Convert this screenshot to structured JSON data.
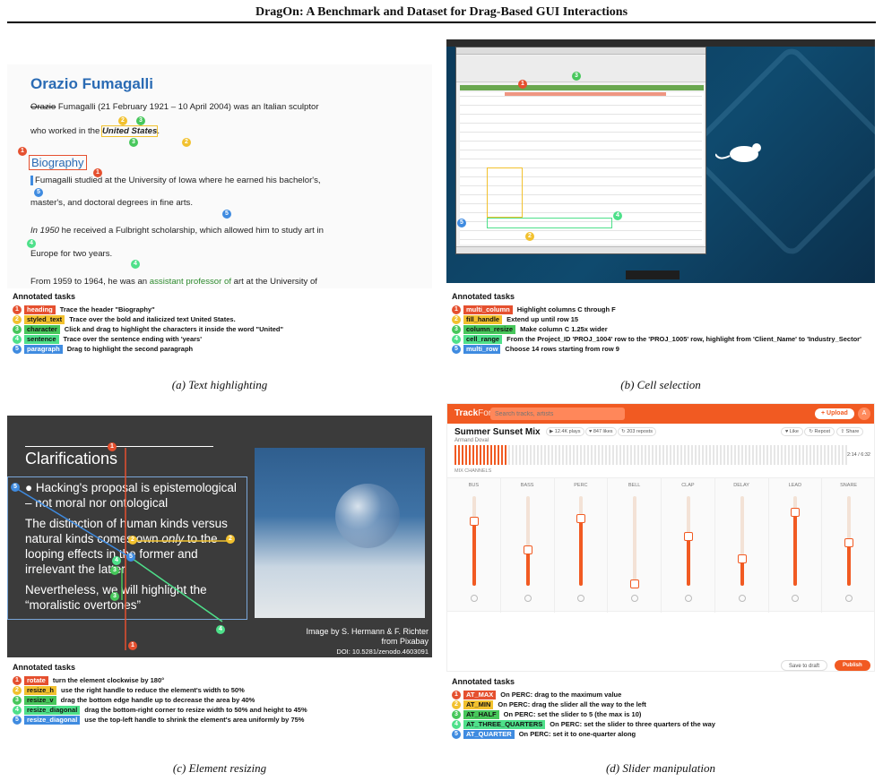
{
  "paper_title": "DragOn: A Benchmark and Dataset for Drag-Based GUI Interactions",
  "tasks_heading": "Annotated tasks",
  "panel_a": {
    "caption": "(a) Text highlighting",
    "wiki": {
      "name": "Orazio Fumagalli",
      "struck": "Orazio",
      "line1": " Fumagalli (21 February 1921 – 10 April 2004) was an Italian sculptor",
      "line2_pre": "who worked in the ",
      "line2_bold": "United States",
      "line2_post": ".",
      "section": "Biography",
      "p1": "Fumagalli studied at the University of Iowa where he earned his bachelor's,",
      "p2": "master's, and doctoral degrees in fine arts.",
      "p3_italic": "In 1950",
      "p3": " he received a Fulbright scholarship, which allowed him to study art in",
      "p4": "Europe for two years.",
      "p5": "From 1959 to 1964, he was an ",
      "p5_link": "assistant professor of",
      "p5_post": " art at the University of"
    },
    "tasks": [
      {
        "n": "1",
        "tag": "heading",
        "text": "Trace the header \"Biography\""
      },
      {
        "n": "2",
        "tag": "styled_text",
        "text": "Trace over the bold and italicized text United States."
      },
      {
        "n": "3",
        "tag": "character",
        "text": "Click and drag to highlight the characters it inside the word \"United\""
      },
      {
        "n": "4",
        "tag": "sentence",
        "text": "Trace over the sentence ending with 'years'"
      },
      {
        "n": "5",
        "tag": "paragraph",
        "text": "Drag to highlight the second paragraph"
      }
    ]
  },
  "panel_b": {
    "caption": "(b) Cell selection",
    "tasks": [
      {
        "n": "1",
        "tag": "multi_column",
        "text": "Highlight columns C through F"
      },
      {
        "n": "2",
        "tag": "fill_handle",
        "text": "Extend up until row 15"
      },
      {
        "n": "3",
        "tag": "column_resize",
        "text": "Make column C 1.25x wider"
      },
      {
        "n": "4",
        "tag": "cell_range",
        "text": "From the Project_ID 'PROJ_1004' row to the 'PROJ_1005' row, highlight from 'Client_Name' to 'Industry_Sector'"
      },
      {
        "n": "5",
        "tag": "multi_row",
        "text": "Choose 14 rows starting from row 9"
      }
    ]
  },
  "panel_c": {
    "caption": "(c) Element resizing",
    "slide": {
      "title": "Clarifications",
      "b1": "Hacking's proposal is epistemological – not moral nor ontological",
      "b2a": "The distinction of human kinds versus natural kinds comes own ",
      "b2i": "only",
      "b2b": " to the looping effects in the former and irrelevant the latter",
      "b3": "Nevertheless, we will highlight the “moralistic overtones”",
      "credit1": "Image by S. Hermann & F. Richter",
      "credit2": "from Pixabay",
      "credit3": "DOI: 10.5281/zenodo.4603091"
    },
    "tasks": [
      {
        "n": "1",
        "tag": "rotate",
        "text": "turn the element clockwise by 180°"
      },
      {
        "n": "2",
        "tag": "resize_h",
        "text": "use the right handle to reduce the element's width to 50%"
      },
      {
        "n": "3",
        "tag": "resize_v",
        "text": "drag the bottom edge handle up to decrease the area by 40%"
      },
      {
        "n": "4",
        "tag": "resize_diagonal",
        "text": "drag the bottom-right corner to resize width to 50% and height to 45%"
      },
      {
        "n": "5",
        "tag": "resize_diagonal",
        "text": "use the top-left handle to shrink the element's area uniformly by 75%"
      }
    ]
  },
  "panel_d": {
    "caption": "(d) Slider manipulation",
    "app": {
      "logo_a": "Track",
      "logo_b": "Forge",
      "search_placeholder": "Search tracks, artists",
      "upload": "+ Upload",
      "avatar": "A",
      "track_title": "Summer Sunset Mix",
      "artist": "Armand Doval",
      "stat1": "▶ 12.4K plays",
      "stat2": "♥ 847 likes",
      "stat3": "↻ 203 reposts",
      "like": "♥ Like",
      "repost": "↻ Repost",
      "share": "⇪ Share",
      "time": "2:14 / 6:32",
      "section": "MIX CHANNELS",
      "save": "Save to draft",
      "publish": "Publish"
    },
    "channels": [
      {
        "name": "BUS",
        "level": 0.72
      },
      {
        "name": "BASS",
        "level": 0.4
      },
      {
        "name": "PERC",
        "level": 0.75
      },
      {
        "name": "BELL",
        "level": 0.02
      },
      {
        "name": "CLAP",
        "level": 0.55
      },
      {
        "name": "DELAY",
        "level": 0.3
      },
      {
        "name": "LEAD",
        "level": 0.82
      },
      {
        "name": "SNARE",
        "level": 0.48
      }
    ],
    "tasks": [
      {
        "n": "1",
        "tag": "AT_MAX",
        "text": "On PERC: drag to the maximum value"
      },
      {
        "n": "2",
        "tag": "AT_MIN",
        "text": "On PERC: drag the slider all the way to the left"
      },
      {
        "n": "3",
        "tag": "AT_HALF",
        "text": "On PERC: set the slider to 5 (the max is 10)"
      },
      {
        "n": "4",
        "tag": "AT_THREE_QUARTERS",
        "text": "On PERC: set the slider to three quarters of the way"
      },
      {
        "n": "5",
        "tag": "AT_QUARTER",
        "text": "On PERC: set it to one-quarter along"
      }
    ]
  }
}
